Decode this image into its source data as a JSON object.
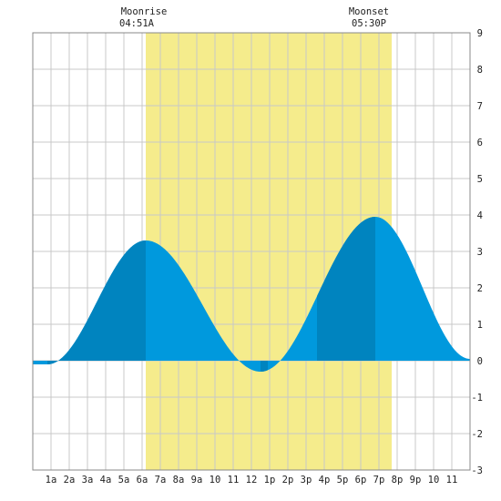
{
  "chart_data": {
    "type": "area",
    "title": "",
    "xlabel": "",
    "ylabel": "",
    "x_unit": "hour of day",
    "xlim": [
      0,
      24
    ],
    "ylim": [
      -3,
      9
    ],
    "grid": true,
    "x_ticks": [
      {
        "x": 1,
        "label": "1a"
      },
      {
        "x": 2,
        "label": "2a"
      },
      {
        "x": 3,
        "label": "3a"
      },
      {
        "x": 4,
        "label": "4a"
      },
      {
        "x": 5,
        "label": "5a"
      },
      {
        "x": 6,
        "label": "6a"
      },
      {
        "x": 7,
        "label": "7a"
      },
      {
        "x": 8,
        "label": "8a"
      },
      {
        "x": 9,
        "label": "9a"
      },
      {
        "x": 10,
        "label": "10"
      },
      {
        "x": 11,
        "label": "11"
      },
      {
        "x": 12,
        "label": "12"
      },
      {
        "x": 13,
        "label": "1p"
      },
      {
        "x": 14,
        "label": "2p"
      },
      {
        "x": 15,
        "label": "3p"
      },
      {
        "x": 16,
        "label": "4p"
      },
      {
        "x": 17,
        "label": "5p"
      },
      {
        "x": 18,
        "label": "6p"
      },
      {
        "x": 19,
        "label": "7p"
      },
      {
        "x": 20,
        "label": "8p"
      },
      {
        "x": 21,
        "label": "9p"
      },
      {
        "x": 22,
        "label": "10"
      },
      {
        "x": 23,
        "label": "11"
      }
    ],
    "y_ticks": [
      -3,
      -2,
      -1,
      0,
      1,
      2,
      3,
      4,
      5,
      6,
      7,
      8,
      9
    ],
    "moon": {
      "rise_label": "Moonrise",
      "rise_time": "04:51A",
      "set_label": "Moonset",
      "set_time": "05:30P",
      "band_start": 6.2,
      "band_end": 19.7
    },
    "series": [
      {
        "extrema": [
          {
            "t": 0.0,
            "h": -0.1
          },
          {
            "t": 0.8,
            "h": -0.1
          },
          {
            "t": 6.2,
            "h": 3.3
          },
          {
            "t": 12.5,
            "h": -0.3
          },
          {
            "t": 18.8,
            "h": 3.95
          },
          {
            "t": 24.0,
            "h": 0.05
          }
        ],
        "dark_segments": [
          [
            0.8,
            6.2
          ],
          [
            12.5,
            12.9
          ],
          [
            15.6,
            18.8
          ]
        ]
      }
    ],
    "colors": {
      "background": "#ffffff",
      "plot_background": "#ffffff",
      "moon_band": "#f5ec8c",
      "grid": "#c8c8c8",
      "area": "#0099dd",
      "area_dark": "#0084bf",
      "text": "#222222"
    }
  }
}
